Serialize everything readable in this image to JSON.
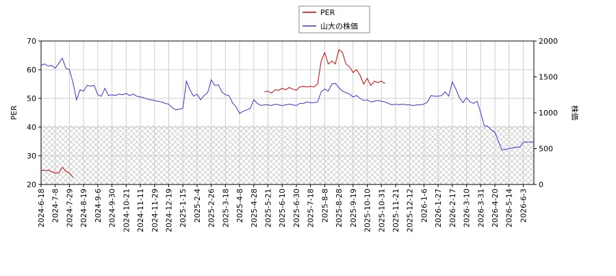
{
  "chart_data": {
    "type": "line",
    "categories": [
      "2024-6-18",
      null,
      null,
      null,
      "2024-7-8",
      null,
      null,
      null,
      "2024-7-29",
      null,
      null,
      null,
      "2024-8-19",
      null,
      null,
      null,
      "2024-9-6",
      null,
      null,
      null,
      "2024-9-30",
      null,
      null,
      null,
      "2024-10-21",
      null,
      null,
      null,
      "2024-11-11",
      null,
      null,
      null,
      "2024-11-29",
      null,
      null,
      null,
      "2024-12-19",
      null,
      null,
      null,
      "2025-1-15",
      null,
      null,
      null,
      "2025-2-4",
      null,
      null,
      null,
      "2025-2-26",
      null,
      null,
      null,
      "2025-3-18",
      null,
      null,
      null,
      "2025-4-8",
      null,
      null,
      null,
      "2025-4-28",
      null,
      null,
      null,
      "2025-5-21",
      null,
      null,
      null,
      "2025-6-10",
      null,
      null,
      null,
      "2025-6-30",
      null,
      null,
      null,
      "2025-7-18",
      null,
      null,
      null,
      "2025-8-8",
      null,
      null,
      null,
      "2025-8-28",
      null,
      null,
      null,
      "2025-9-19",
      null,
      null,
      null,
      "2025-10-10",
      null,
      null,
      null,
      "2025-10-31",
      null,
      null,
      null,
      "2025-11-21",
      null,
      null,
      null,
      "2025-12-12",
      null,
      null,
      null,
      "2026-1-6",
      null,
      null,
      null,
      "2026-1-27",
      null,
      null,
      null,
      "2026-2-17",
      null,
      null,
      null,
      "2026-3-10",
      null,
      null,
      null,
      "2026-3-31",
      null,
      null,
      null,
      "2026-4-20",
      null,
      null,
      null,
      "2026-5-14",
      null,
      null,
      null,
      "2026-6-3",
      null,
      null,
      null
    ],
    "series": [
      {
        "name": "PER",
        "color": "#cc0000",
        "axis": "y",
        "values": [
          25,
          24.8,
          25,
          24.5,
          24,
          24,
          26,
          24.5,
          24,
          22.5,
          null,
          null,
          null,
          null,
          null,
          null,
          null,
          null,
          null,
          null,
          null,
          null,
          null,
          null,
          null,
          null,
          null,
          null,
          null,
          null,
          null,
          null,
          null,
          null,
          null,
          null,
          null,
          null,
          null,
          null,
          null,
          null,
          null,
          null,
          null,
          null,
          null,
          null,
          null,
          null,
          null,
          null,
          null,
          null,
          null,
          null,
          null,
          null,
          null,
          null,
          null,
          null,
          null,
          52.3,
          52.5,
          51.8,
          53,
          52.8,
          53.5,
          53,
          53.8,
          53.2,
          52.8,
          54,
          54.2,
          54,
          54.2,
          54,
          55,
          63,
          66,
          62,
          63,
          62,
          67,
          66,
          62,
          61,
          59,
          60,
          58,
          55,
          57,
          54.5,
          56,
          55.5,
          56,
          55.2,
          null,
          null,
          null,
          null,
          null,
          null,
          null,
          null,
          null,
          null,
          null,
          null,
          null,
          null,
          null,
          null,
          null,
          null,
          null,
          null,
          null,
          null,
          null,
          null,
          null,
          null,
          null,
          null,
          null,
          null,
          null,
          null,
          null,
          null,
          null,
          null,
          null,
          null,
          null,
          null,
          null,
          null
        ]
      },
      {
        "name": "山大の株価",
        "color": "#3333dd",
        "axis": "y2",
        "values": [
          1660,
          1680,
          1650,
          1660,
          1620,
          1690,
          1760,
          1620,
          1600,
          1420,
          1180,
          1320,
          1300,
          1380,
          1370,
          1380,
          1250,
          1230,
          1340,
          1240,
          1250,
          1240,
          1260,
          1250,
          1270,
          1240,
          1260,
          1230,
          1220,
          1210,
          1190,
          1180,
          1170,
          1160,
          1150,
          1130,
          1120,
          1070,
          1040,
          1050,
          1060,
          1440,
          1320,
          1230,
          1260,
          1180,
          1240,
          1280,
          1460,
          1380,
          1390,
          1290,
          1250,
          1240,
          1140,
          1080,
          990,
          1020,
          1040,
          1060,
          1180,
          1130,
          1100,
          1110,
          1110,
          1100,
          1120,
          1110,
          1100,
          1110,
          1120,
          1110,
          1100,
          1130,
          1130,
          1150,
          1140,
          1140,
          1150,
          1290,
          1330,
          1300,
          1400,
          1410,
          1350,
          1300,
          1280,
          1260,
          1220,
          1240,
          1200,
          1170,
          1180,
          1150,
          1160,
          1170,
          1160,
          1150,
          1130,
          1110,
          1120,
          1110,
          1120,
          1110,
          1110,
          1100,
          1110,
          1110,
          1120,
          1150,
          1240,
          1230,
          1230,
          1240,
          1290,
          1230,
          1430,
          1330,
          1210,
          1140,
          1210,
          1150,
          1130,
          1160,
          1000,
          820,
          810,
          760,
          730,
          600,
          480,
          490,
          500,
          510,
          520,
          520,
          590,
          590,
          590,
          590
        ]
      }
    ],
    "ylabel": "PER",
    "y2label": "株価",
    "ylim": [
      20,
      70
    ],
    "yticks": [
      20,
      30,
      40,
      50,
      60,
      70
    ],
    "y2lim": [
      0,
      2000
    ],
    "y2ticks": [
      0,
      500,
      1000,
      1500,
      2000
    ],
    "grid": true,
    "legend": "top"
  }
}
